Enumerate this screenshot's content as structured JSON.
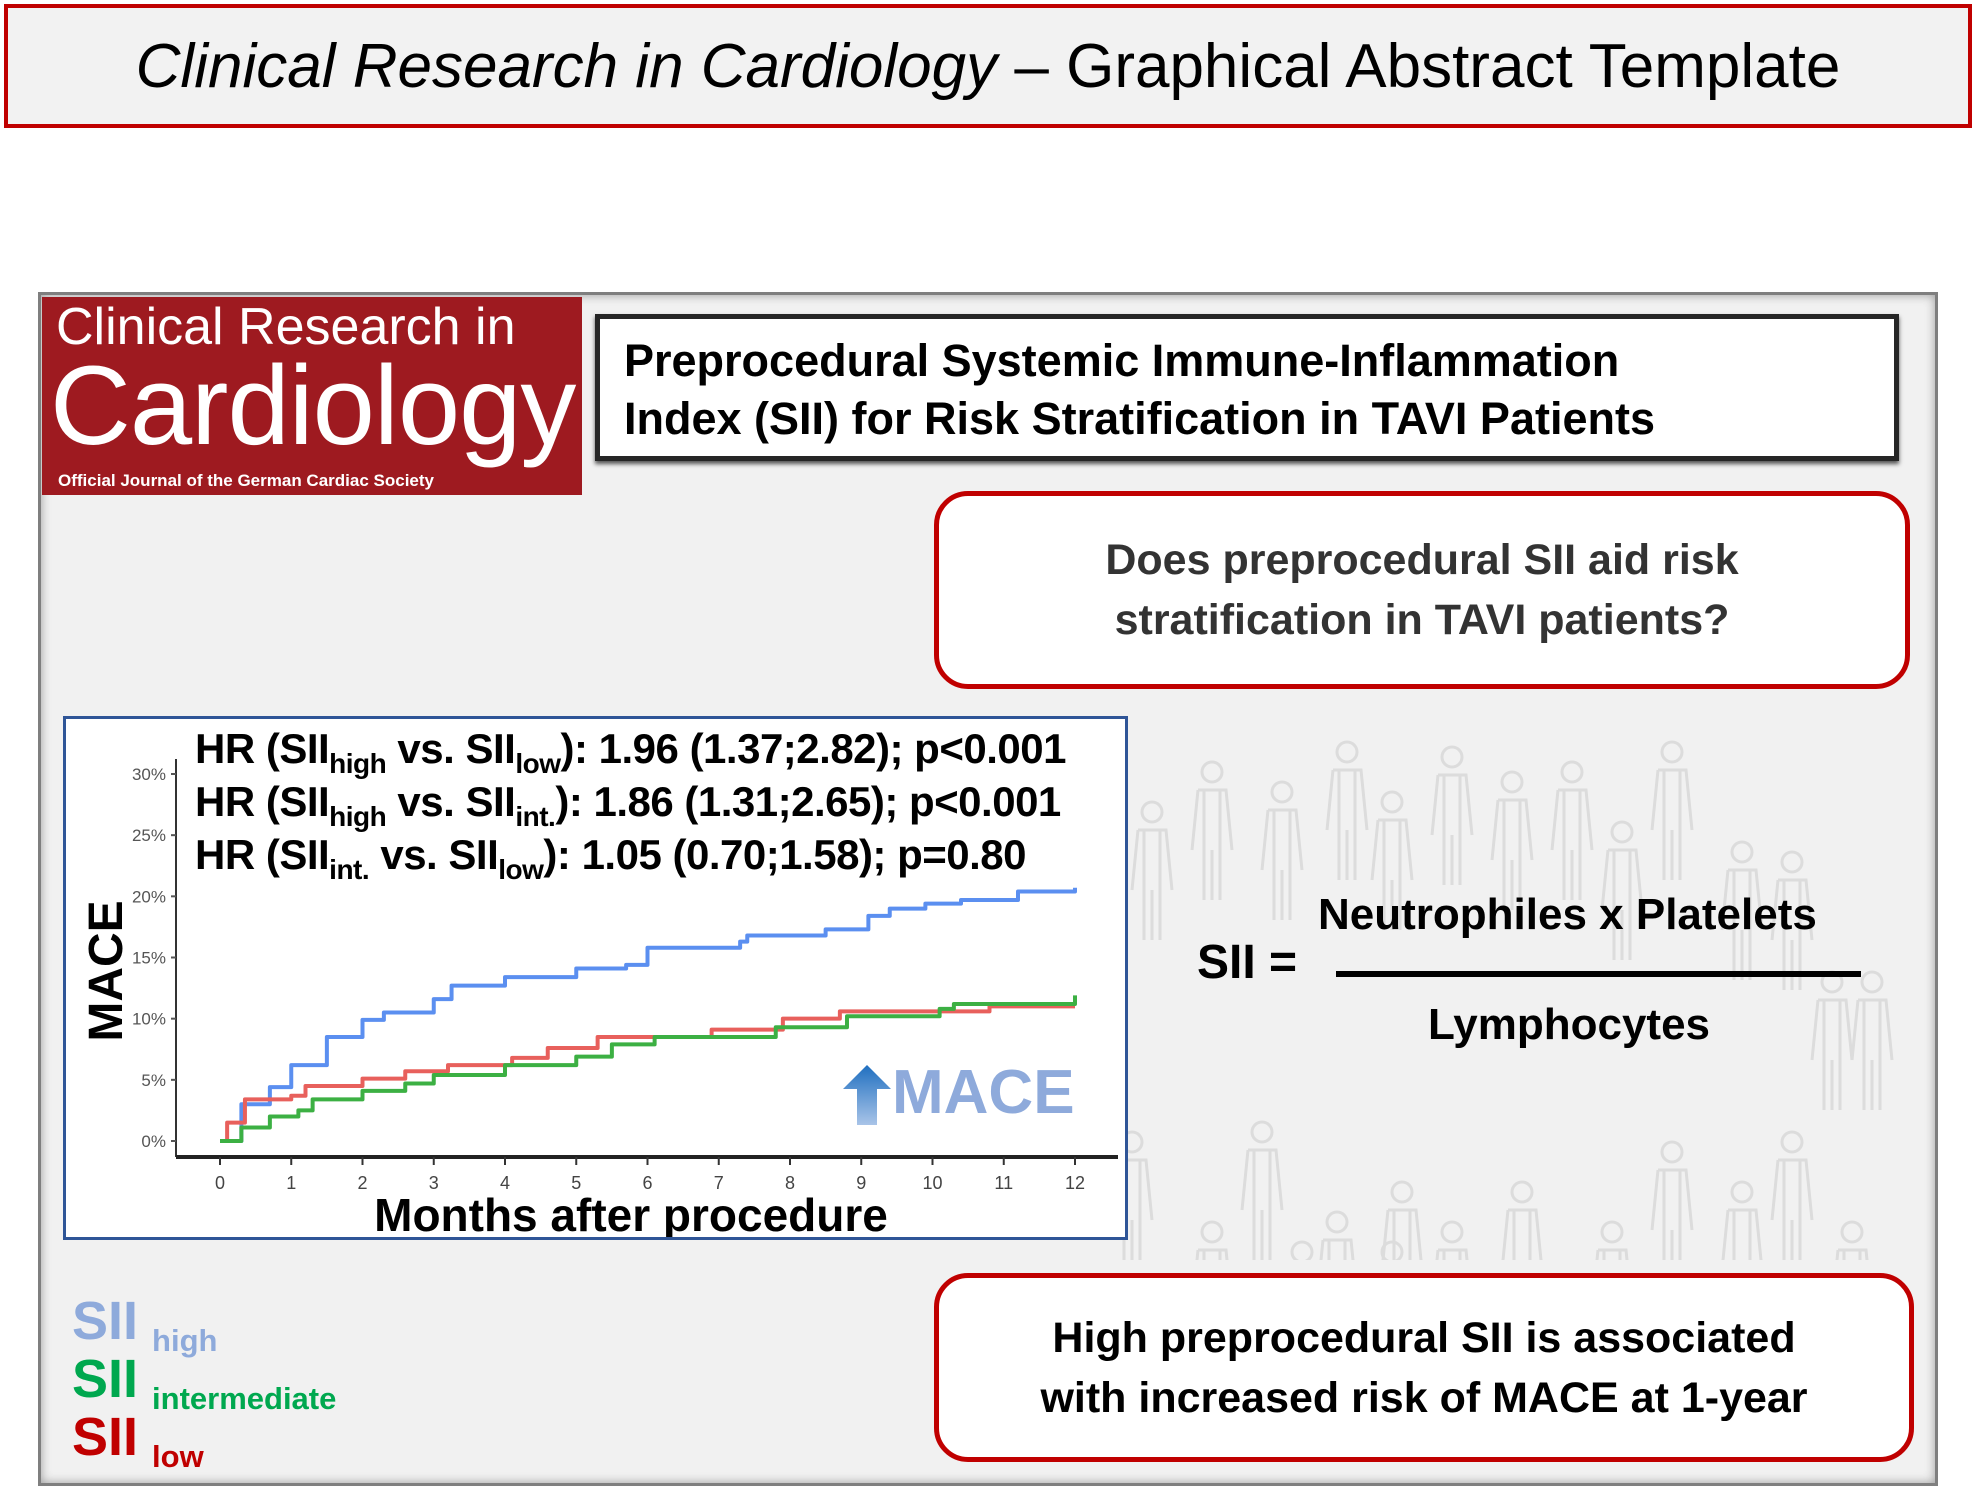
{
  "banner": {
    "journal": "Clinical Research in Cardiology",
    "rest": " – Graphical Abstract Template"
  },
  "logo": {
    "line1": "Clinical Research in",
    "line2": "Cardiology",
    "line3": "Official Journal of the German Cardiac Society"
  },
  "title": {
    "line1": "Preprocedural Systemic Immune-Inflammation",
    "line2": "Index (SII) for Risk Stratification in TAVI Patients"
  },
  "question": {
    "line1": "Does preprocedural SII aid risk",
    "line2": "stratification in TAVI patients?"
  },
  "conclusion": {
    "line1": "High preprocedural SII is associated",
    "line2": "with increased risk of MACE at 1-year"
  },
  "formula": {
    "lhs": "SII =",
    "numerator": "Neutrophiles x Platelets",
    "denominator": "Lymphocytes"
  },
  "legend": [
    {
      "main": "SII",
      "sub": "high",
      "color": "#8eaadb"
    },
    {
      "main": "SII",
      "sub": "intermediate",
      "color": "#00a84f"
    },
    {
      "main": "SII",
      "sub": "low",
      "color": "#c00000"
    }
  ],
  "hr_lines": [
    {
      "a": "HR (SII",
      "s1": "high",
      "b": " vs. SII",
      "s2": "low",
      "c": "): 1.96 (1.37;2.82); p<0.001"
    },
    {
      "a": "HR (SII",
      "s1": "high",
      "b": " vs. SII",
      "s2": "int.",
      "c": "): 1.86 (1.31;2.65); p<0.001"
    },
    {
      "a": "HR (SII",
      "s1": "int.",
      "b": " vs. SII",
      "s2": "low",
      "c": "): 1.05 (0.70;1.58); p=0.80"
    }
  ],
  "annotation": {
    "text": "MACE",
    "color": "#8eaadb"
  },
  "chart_data": {
    "type": "line",
    "title": "",
    "xlabel": "Months after procedure",
    "ylabel": "MACE",
    "xlim": [
      0,
      12
    ],
    "ylim": [
      0,
      30
    ],
    "xticks": [
      "0",
      "1",
      "2",
      "3",
      "4",
      "5",
      "6",
      "7",
      "8",
      "9",
      "10",
      "11",
      "12"
    ],
    "yticks": [
      "0%",
      "5%",
      "10%",
      "15%",
      "20%",
      "25%",
      "30%"
    ],
    "series": [
      {
        "name": "SII high",
        "color": "#5b8ff0",
        "x": [
          0,
          0.3,
          0.7,
          1.0,
          1.5,
          2.0,
          2.3,
          2.6,
          3.0,
          3.25,
          4.0,
          5.0,
          5.7,
          6.0,
          7.3,
          7.4,
          8.5,
          9.1,
          9.4,
          9.9,
          10.4,
          11.2,
          12
        ],
        "y": [
          0,
          3.0,
          4.4,
          6.2,
          8.5,
          9.9,
          10.5,
          10.5,
          11.6,
          12.7,
          13.4,
          14.1,
          14.4,
          15.8,
          16.3,
          16.8,
          17.3,
          18.4,
          19.0,
          19.4,
          19.7,
          20.4,
          20.7
        ]
      },
      {
        "name": "SII low",
        "color": "#e8605c",
        "x": [
          0,
          0.1,
          0.35,
          1.0,
          1.2,
          2.0,
          2.6,
          3.2,
          4.1,
          4.6,
          5.3,
          6.9,
          7.9,
          8.7,
          9.9,
          10.8,
          12
        ],
        "y": [
          0,
          1.5,
          3.4,
          3.7,
          4.5,
          5.1,
          5.7,
          6.2,
          6.8,
          7.6,
          8.5,
          9.1,
          10.0,
          10.6,
          10.6,
          11.0,
          11.0
        ]
      },
      {
        "name": "SII intermediate",
        "color": "#3cb043",
        "x": [
          0,
          0.3,
          0.7,
          1.1,
          1.3,
          2.0,
          2.6,
          3.0,
          4.0,
          5.0,
          5.5,
          6.1,
          7.6,
          7.8,
          8.8,
          10.1,
          10.3,
          11.6,
          12
        ],
        "y": [
          0,
          1.1,
          2.0,
          2.5,
          3.4,
          4.1,
          4.7,
          5.4,
          6.2,
          6.9,
          7.9,
          8.5,
          8.5,
          9.3,
          10.2,
          10.8,
          11.2,
          11.2,
          11.9
        ]
      }
    ]
  }
}
